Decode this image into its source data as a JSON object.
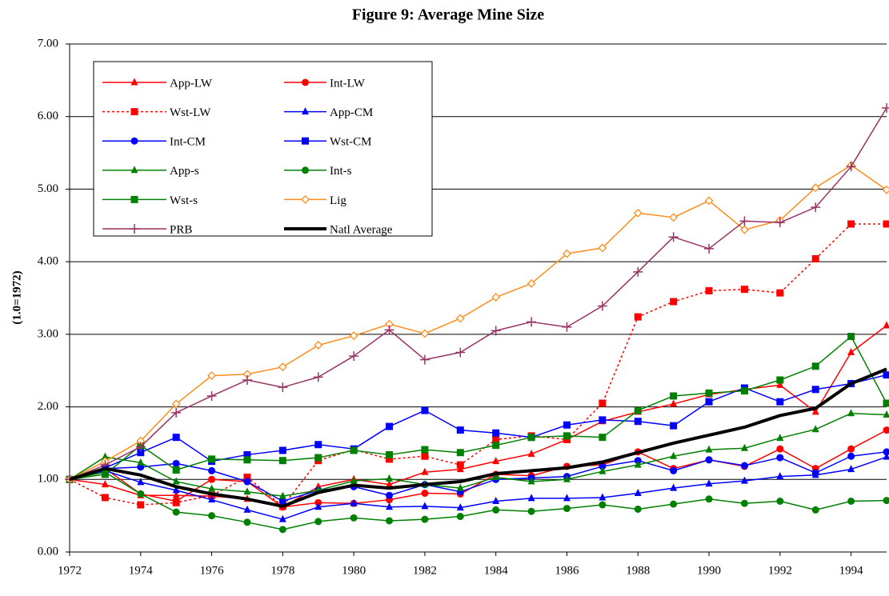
{
  "chart_data": {
    "type": "line",
    "title": "Figure 9:  Average Mine Size",
    "y_label": "(1.0=1972)",
    "x": [
      1972,
      1973,
      1974,
      1975,
      1976,
      1977,
      1978,
      1979,
      1980,
      1981,
      1982,
      1983,
      1984,
      1985,
      1986,
      1987,
      1988,
      1989,
      1990,
      1991,
      1992,
      1993,
      1994,
      1995
    ],
    "xlim": [
      1972,
      1995
    ],
    "xticks": [
      1972,
      1974,
      1976,
      1978,
      1980,
      1982,
      1984,
      1986,
      1988,
      1990,
      1992,
      1994
    ],
    "ylim": [
      0,
      7
    ],
    "yticks": [
      {
        "value": 0,
        "label": "0.00"
      },
      {
        "value": 1,
        "label": "1.00"
      },
      {
        "value": 2,
        "label": "2.00"
      },
      {
        "value": 3,
        "label": "3.00"
      },
      {
        "value": 4,
        "label": "4.00"
      },
      {
        "value": 5,
        "label": "5.00"
      },
      {
        "value": 6,
        "label": "6.00"
      },
      {
        "value": 7,
        "label": "7.00"
      }
    ],
    "grid": true,
    "legend": "upper left",
    "series": [
      {
        "name": "App-LW",
        "color": "#ff0000",
        "marker": "triangle",
        "values": [
          1.0,
          0.93,
          0.78,
          0.78,
          0.77,
          0.73,
          0.62,
          0.9,
          1.0,
          0.93,
          1.1,
          1.14,
          1.25,
          1.35,
          1.55,
          1.8,
          1.93,
          2.04,
          2.17,
          2.24,
          2.3,
          1.93,
          2.75,
          3.12
        ]
      },
      {
        "name": "Int-LW",
        "color": "#ff0000",
        "marker": "circle",
        "values": [
          1.0,
          1.15,
          0.8,
          0.7,
          1.0,
          0.97,
          0.62,
          0.68,
          0.67,
          0.72,
          0.81,
          0.8,
          1.07,
          1.05,
          1.18,
          1.2,
          1.38,
          1.15,
          1.27,
          1.18,
          1.42,
          1.15,
          1.42,
          1.68
        ]
      },
      {
        "name": "Wst-LW",
        "color": "#ff0000",
        "marker": "square",
        "dashed": true,
        "values": [
          1.0,
          0.75,
          0.65,
          0.68,
          0.78,
          1.03,
          0.63,
          1.26,
          1.41,
          1.28,
          1.32,
          1.2,
          1.55,
          1.6,
          1.55,
          2.05,
          3.24,
          3.45,
          3.6,
          3.62,
          3.57,
          4.04,
          4.52,
          4.52
        ]
      },
      {
        "name": "App-CM",
        "color": "#0000ff",
        "marker": "triangle",
        "values": [
          1.0,
          1.12,
          0.96,
          0.85,
          0.72,
          0.58,
          0.45,
          0.62,
          0.67,
          0.62,
          0.63,
          0.61,
          0.7,
          0.74,
          0.74,
          0.75,
          0.81,
          0.88,
          0.94,
          0.98,
          1.04,
          1.06,
          1.14,
          1.31
        ]
      },
      {
        "name": "Int-CM",
        "color": "#0000ff",
        "marker": "circle",
        "values": [
          1.0,
          1.15,
          1.17,
          1.22,
          1.12,
          0.97,
          0.7,
          0.85,
          0.9,
          0.78,
          0.93,
          0.83,
          1.0,
          1.02,
          1.04,
          1.18,
          1.26,
          1.12,
          1.27,
          1.19,
          1.3,
          1.09,
          1.32,
          1.38
        ]
      },
      {
        "name": "Wst-CM",
        "color": "#0000ff",
        "marker": "square",
        "values": [
          1.0,
          1.16,
          1.37,
          1.58,
          1.25,
          1.34,
          1.4,
          1.48,
          1.42,
          1.73,
          1.95,
          1.68,
          1.64,
          1.58,
          1.75,
          1.82,
          1.8,
          1.74,
          2.07,
          2.26,
          2.07,
          2.24,
          2.32,
          2.44
        ]
      },
      {
        "name": "App-s",
        "color": "#008000",
        "marker": "triangle",
        "values": [
          1.0,
          1.31,
          1.23,
          0.97,
          0.87,
          0.83,
          0.77,
          0.85,
          0.98,
          1.01,
          0.93,
          0.88,
          1.03,
          0.97,
          1.0,
          1.11,
          1.2,
          1.32,
          1.41,
          1.43,
          1.57,
          1.69,
          1.91,
          1.89
        ]
      },
      {
        "name": "Int-s",
        "color": "#008000",
        "marker": "circle",
        "values": [
          1.0,
          1.1,
          0.8,
          0.55,
          0.5,
          0.41,
          0.31,
          0.42,
          0.47,
          0.43,
          0.45,
          0.49,
          0.58,
          0.56,
          0.6,
          0.65,
          0.59,
          0.66,
          0.73,
          0.67,
          0.7,
          0.58,
          0.7,
          0.71
        ]
      },
      {
        "name": "Wst-s",
        "color": "#008000",
        "marker": "square",
        "values": [
          1.0,
          1.07,
          1.47,
          1.13,
          1.28,
          1.27,
          1.26,
          1.3,
          1.4,
          1.34,
          1.41,
          1.37,
          1.47,
          1.58,
          1.6,
          1.58,
          1.95,
          2.15,
          2.19,
          2.22,
          2.37,
          2.56,
          2.97,
          2.05
        ]
      },
      {
        "name": "Lig",
        "color": "#ff8c1a",
        "marker": "diamond",
        "values": [
          1.0,
          1.25,
          1.53,
          2.04,
          2.43,
          2.45,
          2.55,
          2.85,
          2.98,
          3.14,
          3.01,
          3.22,
          3.51,
          3.7,
          4.11,
          4.19,
          4.67,
          4.61,
          4.84,
          4.44,
          4.57,
          5.02,
          5.33,
          4.99
        ]
      },
      {
        "name": "PRB",
        "color": "#993366",
        "marker": "plus",
        "values": [
          1.0,
          1.2,
          1.45,
          1.92,
          2.15,
          2.37,
          2.27,
          2.41,
          2.7,
          3.06,
          2.65,
          2.75,
          3.05,
          3.17,
          3.1,
          3.39,
          3.86,
          4.34,
          4.18,
          4.56,
          4.54,
          4.75,
          5.31,
          6.12
        ]
      },
      {
        "name": "Natl Average",
        "color": "#000000",
        "marker": "none",
        "thick": true,
        "values": [
          1.0,
          1.15,
          1.06,
          0.9,
          0.8,
          0.73,
          0.63,
          0.82,
          0.92,
          0.88,
          0.93,
          0.97,
          1.08,
          1.12,
          1.16,
          1.24,
          1.37,
          1.5,
          1.61,
          1.72,
          1.88,
          1.98,
          2.32,
          2.52
        ]
      }
    ]
  }
}
